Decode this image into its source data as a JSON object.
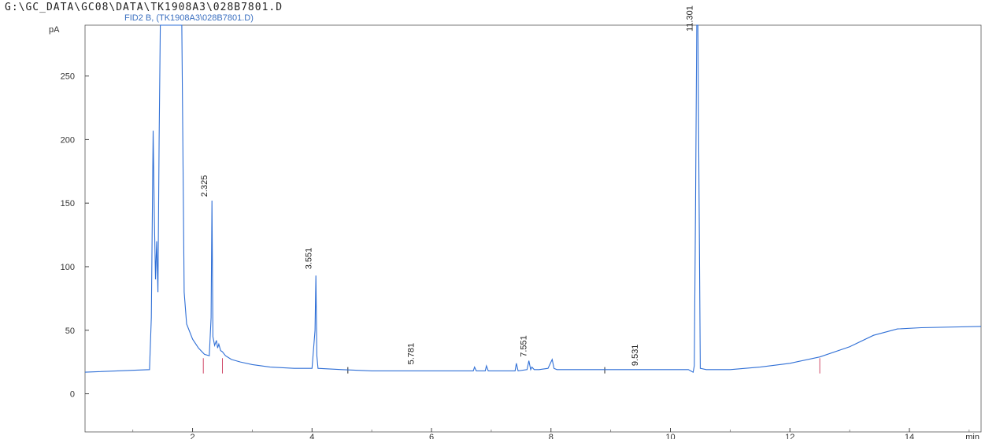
{
  "header": {
    "file_path": "G:\\GC_DATA\\GC08\\DATA\\TK1908A3\\028B7801.D",
    "signal_label": "FID2 B, (TK1908A3\\028B7801.D)"
  },
  "chart_data": {
    "type": "line",
    "title": "",
    "ylabel": "pA",
    "xlabel": "min",
    "xlim": [
      0.2,
      15.2
    ],
    "ylim": [
      -30,
      290
    ],
    "x_ticks": [
      2,
      4,
      6,
      8,
      10,
      12,
      14
    ],
    "y_ticks": [
      0,
      50,
      100,
      150,
      200,
      250
    ],
    "series_color": "#2f6fd6",
    "baseline_marker_color": "#d04a6a",
    "peaks": [
      {
        "label": "2.325",
        "x": 2.325,
        "y": 150
      },
      {
        "label": "3.551",
        "x": 4.07,
        "y": 93
      },
      {
        "label": "5.781",
        "x": 5.78,
        "y": 18
      },
      {
        "label": "7.551",
        "x": 7.67,
        "y": 24
      },
      {
        "label": "9.531",
        "x": 9.53,
        "y": 17
      },
      {
        "label": "11.301",
        "x": 10.45,
        "y": 290
      }
    ],
    "signal": {
      "x": [
        0.2,
        1.28,
        1.31,
        1.34,
        1.36,
        1.38,
        1.4,
        1.42,
        1.44,
        1.46,
        1.5,
        1.55,
        1.6,
        1.66,
        1.72,
        1.78,
        1.82,
        1.86,
        1.9,
        2.0,
        2.1,
        2.2,
        2.28,
        2.31,
        2.325,
        2.34,
        2.37,
        2.4,
        2.42,
        2.44,
        2.47,
        2.5,
        2.55,
        2.65,
        2.8,
        3.0,
        3.3,
        3.7,
        4.0,
        4.05,
        4.065,
        4.08,
        4.1,
        4.5,
        5.0,
        5.5,
        6.0,
        6.7,
        6.72,
        6.75,
        6.9,
        6.92,
        6.95,
        7.4,
        7.42,
        7.45,
        7.6,
        7.63,
        7.66,
        7.68,
        7.72,
        7.8,
        7.95,
        8.02,
        8.05,
        8.1,
        9.0,
        10.0,
        10.3,
        10.38,
        10.4,
        10.42,
        10.44,
        10.46,
        10.48,
        10.5,
        10.6,
        11.0,
        11.5,
        12.0,
        12.5,
        13.0,
        13.4,
        13.8,
        14.2,
        15.2
      ],
      "y": [
        17,
        19,
        60,
        207,
        140,
        90,
        120,
        80,
        200,
        290,
        290,
        290,
        290,
        290,
        290,
        290,
        290,
        80,
        55,
        43,
        36,
        31,
        30,
        60,
        152,
        45,
        38,
        42,
        36,
        39,
        34,
        33,
        30,
        27,
        25,
        23,
        21,
        20,
        20,
        50,
        93,
        30,
        20,
        19,
        18,
        18,
        18,
        18,
        21,
        18,
        18,
        22,
        18,
        18,
        24,
        18,
        19,
        26,
        19,
        21,
        19,
        19,
        20,
        27,
        20,
        19,
        19,
        19,
        19,
        17,
        22,
        150,
        290,
        290,
        150,
        20,
        19,
        19,
        21,
        24,
        29,
        37,
        46,
        51,
        52,
        53
      ]
    },
    "baseline_markers": [
      2.18,
      2.5,
      12.5
    ]
  }
}
